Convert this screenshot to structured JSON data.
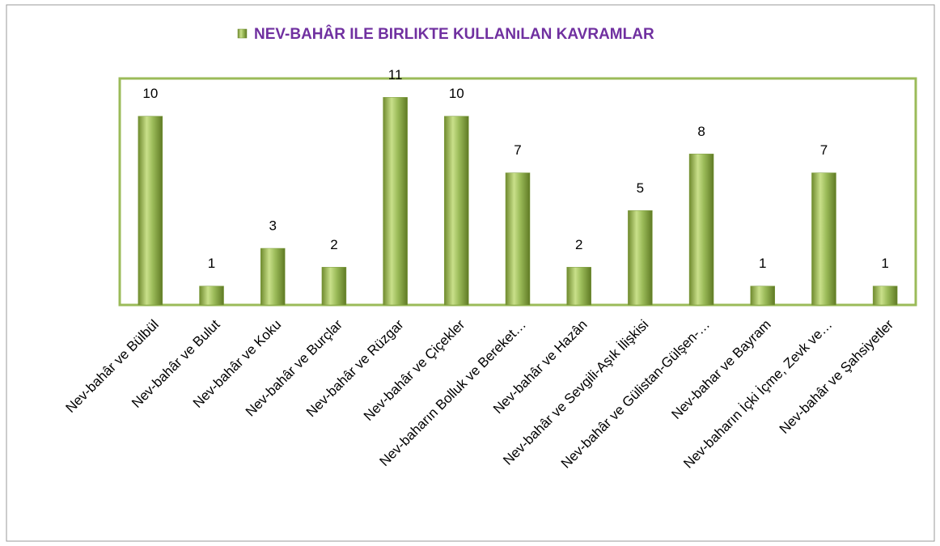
{
  "chart_data": {
    "type": "bar",
    "categories": [
      "Nev-bahâr ve Bülbül",
      "Nev-bahâr ve Bulut",
      "Nev-bahâr ve Koku",
      "Nev-bahâr ve Burçlar",
      "Nev-bahâr ve Rüzgar",
      "Nev-bahâr ve Çiçekler",
      "Nev-baharın Bolluk ve Bereket…",
      "Nev-bahâr ve Hazân",
      "Nev-bahâr ve Sevgili-Aşık İlişkisi",
      "Nev-bahâr ve Gülistan-Gülşen-…",
      "Nev-bahar ve Bayram",
      "Nev-baharın İçki İçme, Zevk ve…",
      "Nev-bahâr ve Şahsiyetler"
    ],
    "series": [
      {
        "name": "NEV-BAHÂR ILE BIRLIKTE KULLANıLAN KAVRAMLAR",
        "color": "#9bbb59",
        "values": [
          10,
          1,
          3,
          2,
          11,
          10,
          7,
          2,
          5,
          8,
          1,
          7,
          1
        ]
      }
    ],
    "ylim": [
      0,
      12
    ],
    "legend": "top"
  }
}
